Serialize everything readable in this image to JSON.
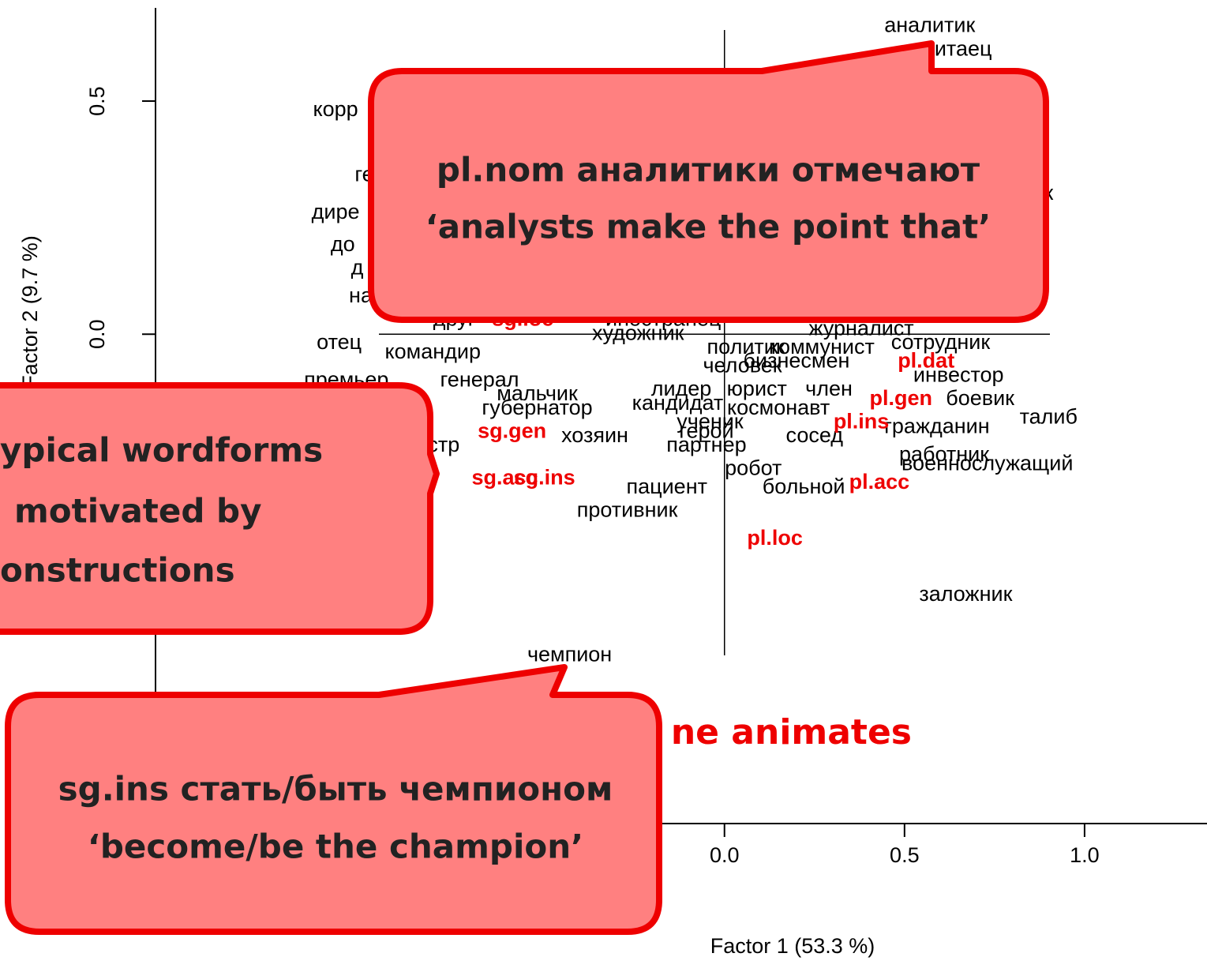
{
  "chart_data": {
    "type": "scatter",
    "x_label": "Factor 1  (53.3 %)",
    "y_label": "Factor 2  (9.7 %)",
    "xlim": [
      -1.58,
      1.34
    ],
    "ylim": [
      -1.05,
      0.7
    ],
    "xticks": [
      {
        "value": 0,
        "label": "0.0"
      },
      0.5,
      {
        "value": 1,
        "label": "1.0"
      }
    ],
    "yticks": [
      {
        "value": 0,
        "label": "0.0"
      },
      0.5
    ],
    "series": [
      {
        "color": "#000000",
        "bold": false,
        "labels": [
          "аналитик",
          "китаец",
          "корр",
          "ге",
          "дире",
          "до",
          "д",
          "на",
          "к",
          "иностранец",
          "журналист",
          "политик",
          "коммунист",
          "сотрудник",
          "бизнесмен",
          "человек",
          "инвестор",
          "лидер",
          "юрист",
          "член",
          "космонавт",
          "кандидат",
          "ученик",
          "боевик",
          "талиб",
          "гражданин",
          "герой",
          "сосед",
          "партнер",
          "работник",
          "робот",
          "военнослужащий",
          "больной",
          "пациент",
          "противник",
          "заложник",
          "чемпион",
          "художник",
          "отец",
          "командир",
          "премьер",
          "генерал",
          "мальчик",
          "губернатор",
          "хозяин",
          "министр",
          "друг"
        ],
        "x": [
          0.57,
          0.65,
          -1.08,
          -1.0,
          -1.08,
          -1.06,
          -1.02,
          -1.01,
          0.9,
          -0.17,
          0.38,
          0.06,
          0.27,
          0.6,
          0.2,
          0.05,
          0.65,
          -0.12,
          0.09,
          0.29,
          0.15,
          -0.13,
          -0.04,
          0.71,
          0.9,
          0.59,
          -0.05,
          0.25,
          -0.05,
          0.61,
          0.08,
          0.73,
          0.22,
          -0.16,
          -0.27,
          0.67,
          -0.43,
          -0.24,
          -1.07,
          -0.81,
          -1.05,
          -0.68,
          -0.52,
          -0.52,
          -0.36,
          -0.85,
          -0.75
        ],
        "y": [
          0.66,
          0.61,
          0.48,
          0.34,
          0.26,
          0.19,
          0.14,
          0.08,
          0.3,
          0.03,
          0.01,
          -0.03,
          -0.03,
          -0.02,
          -0.06,
          -0.07,
          -0.09,
          -0.12,
          -0.12,
          -0.12,
          -0.16,
          -0.15,
          -0.19,
          -0.14,
          -0.18,
          -0.2,
          -0.21,
          -0.22,
          -0.24,
          -0.26,
          -0.29,
          -0.28,
          -0.33,
          -0.33,
          -0.38,
          -0.56,
          -0.69,
          0,
          -0.02,
          -0.04,
          -0.1,
          -0.1,
          -0.13,
          -0.16,
          -0.22,
          -0.24,
          0.03
        ]
      },
      {
        "color": "#ee0000",
        "bold": true,
        "labels": [
          "sg.loc",
          "sg.gen",
          "sg.acc",
          "sg.ins",
          "pl.dat",
          "pl.gen",
          "pl.ins",
          "pl.acc",
          "pl.loc"
        ],
        "x": [
          -0.56,
          -0.59,
          -0.61,
          -0.5,
          0.56,
          0.49,
          0.38,
          0.43,
          0.14
        ],
        "y": [
          0.03,
          -0.21,
          -0.31,
          -0.31,
          -0.06,
          -0.14,
          -0.19,
          -0.32,
          -0.44
        ]
      }
    ],
    "annotations": [
      "ne animates"
    ],
    "callouts": [
      {
        "lines": [
          "pl.nom аналитики отмечают",
          "‘analysts make the point that’"
        ]
      },
      {
        "lines": [
          "ypical wordforms",
          "motivated by",
          "onstructions"
        ]
      },
      {
        "lines": [
          "sg.ins стать/быть чемпионом",
          "‘become/be the champion’"
        ]
      }
    ]
  }
}
